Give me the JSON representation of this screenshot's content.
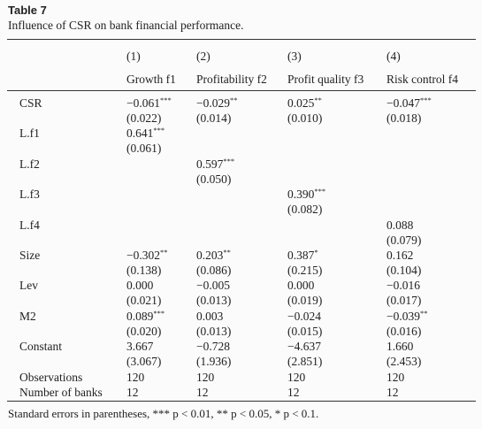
{
  "header": {
    "title": "Table 7",
    "caption": "Influence of CSR on bank financial performance."
  },
  "table": {
    "column_numbers": [
      "(1)",
      "(2)",
      "(3)",
      "(4)"
    ],
    "columns": [
      "Growth f1",
      "Profitability f2",
      "Profit quality f3",
      "Risk control f4"
    ],
    "rows": [
      {
        "label": "CSR",
        "cells": [
          {
            "coef": "−0.061",
            "stars": "***",
            "se": "(0.022)"
          },
          {
            "coef": "−0.029",
            "stars": "**",
            "se": "(0.014)"
          },
          {
            "coef": "0.025",
            "stars": "**",
            "se": "(0.010)"
          },
          {
            "coef": "−0.047",
            "stars": "***",
            "se": "(0.018)"
          }
        ]
      },
      {
        "label": "L.f1",
        "cells": [
          {
            "coef": "0.641",
            "stars": "***",
            "se": "(0.061)"
          },
          null,
          null,
          null
        ]
      },
      {
        "label": "L.f2",
        "cells": [
          null,
          {
            "coef": "0.597",
            "stars": "***",
            "se": "(0.050)"
          },
          null,
          null
        ]
      },
      {
        "label": "L.f3",
        "cells": [
          null,
          null,
          {
            "coef": "0.390",
            "stars": "***",
            "se": "(0.082)"
          },
          null
        ]
      },
      {
        "label": "L.f4",
        "cells": [
          null,
          null,
          null,
          {
            "coef": "0.088",
            "se": "(0.079)"
          }
        ]
      },
      {
        "label": "Size",
        "cells": [
          {
            "coef": "−0.302",
            "stars": "**",
            "se": "(0.138)"
          },
          {
            "coef": "0.203",
            "stars": "**",
            "se": "(0.086)"
          },
          {
            "coef": "0.387",
            "stars": "*",
            "se": "(0.215)"
          },
          {
            "coef": "0.162",
            "se": "(0.104)"
          }
        ]
      },
      {
        "label": "Lev",
        "cells": [
          {
            "coef": "0.000",
            "se": "(0.021)"
          },
          {
            "coef": "−0.005",
            "se": "(0.013)"
          },
          {
            "coef": "0.000",
            "se": "(0.019)"
          },
          {
            "coef": "−0.016",
            "se": "(0.017)"
          }
        ]
      },
      {
        "label": "M2",
        "cells": [
          {
            "coef": "0.089",
            "stars": "***",
            "se": "(0.020)"
          },
          {
            "coef": "0.003",
            "se": "(0.013)"
          },
          {
            "coef": "−0.024",
            "se": "(0.015)"
          },
          {
            "coef": "−0.039",
            "stars": "**",
            "se": "(0.016)"
          }
        ]
      },
      {
        "label": "Constant",
        "cells": [
          {
            "coef": "3.667",
            "se": "(3.067)"
          },
          {
            "coef": "−0.728",
            "se": "(1.936)"
          },
          {
            "coef": "−4.637",
            "se": "(2.851)"
          },
          {
            "coef": "1.660",
            "se": "(2.453)"
          }
        ]
      },
      {
        "label": "Observations",
        "cells": [
          {
            "coef": "120"
          },
          {
            "coef": "120"
          },
          {
            "coef": "120"
          },
          {
            "coef": "120"
          }
        ]
      },
      {
        "label": "Number of banks",
        "cells": [
          {
            "coef": "12"
          },
          {
            "coef": "12"
          },
          {
            "coef": "12"
          },
          {
            "coef": "12"
          }
        ]
      }
    ]
  },
  "note": "Standard errors in parentheses, *** p < 0.01, ** p < 0.05, * p < 0.1."
}
